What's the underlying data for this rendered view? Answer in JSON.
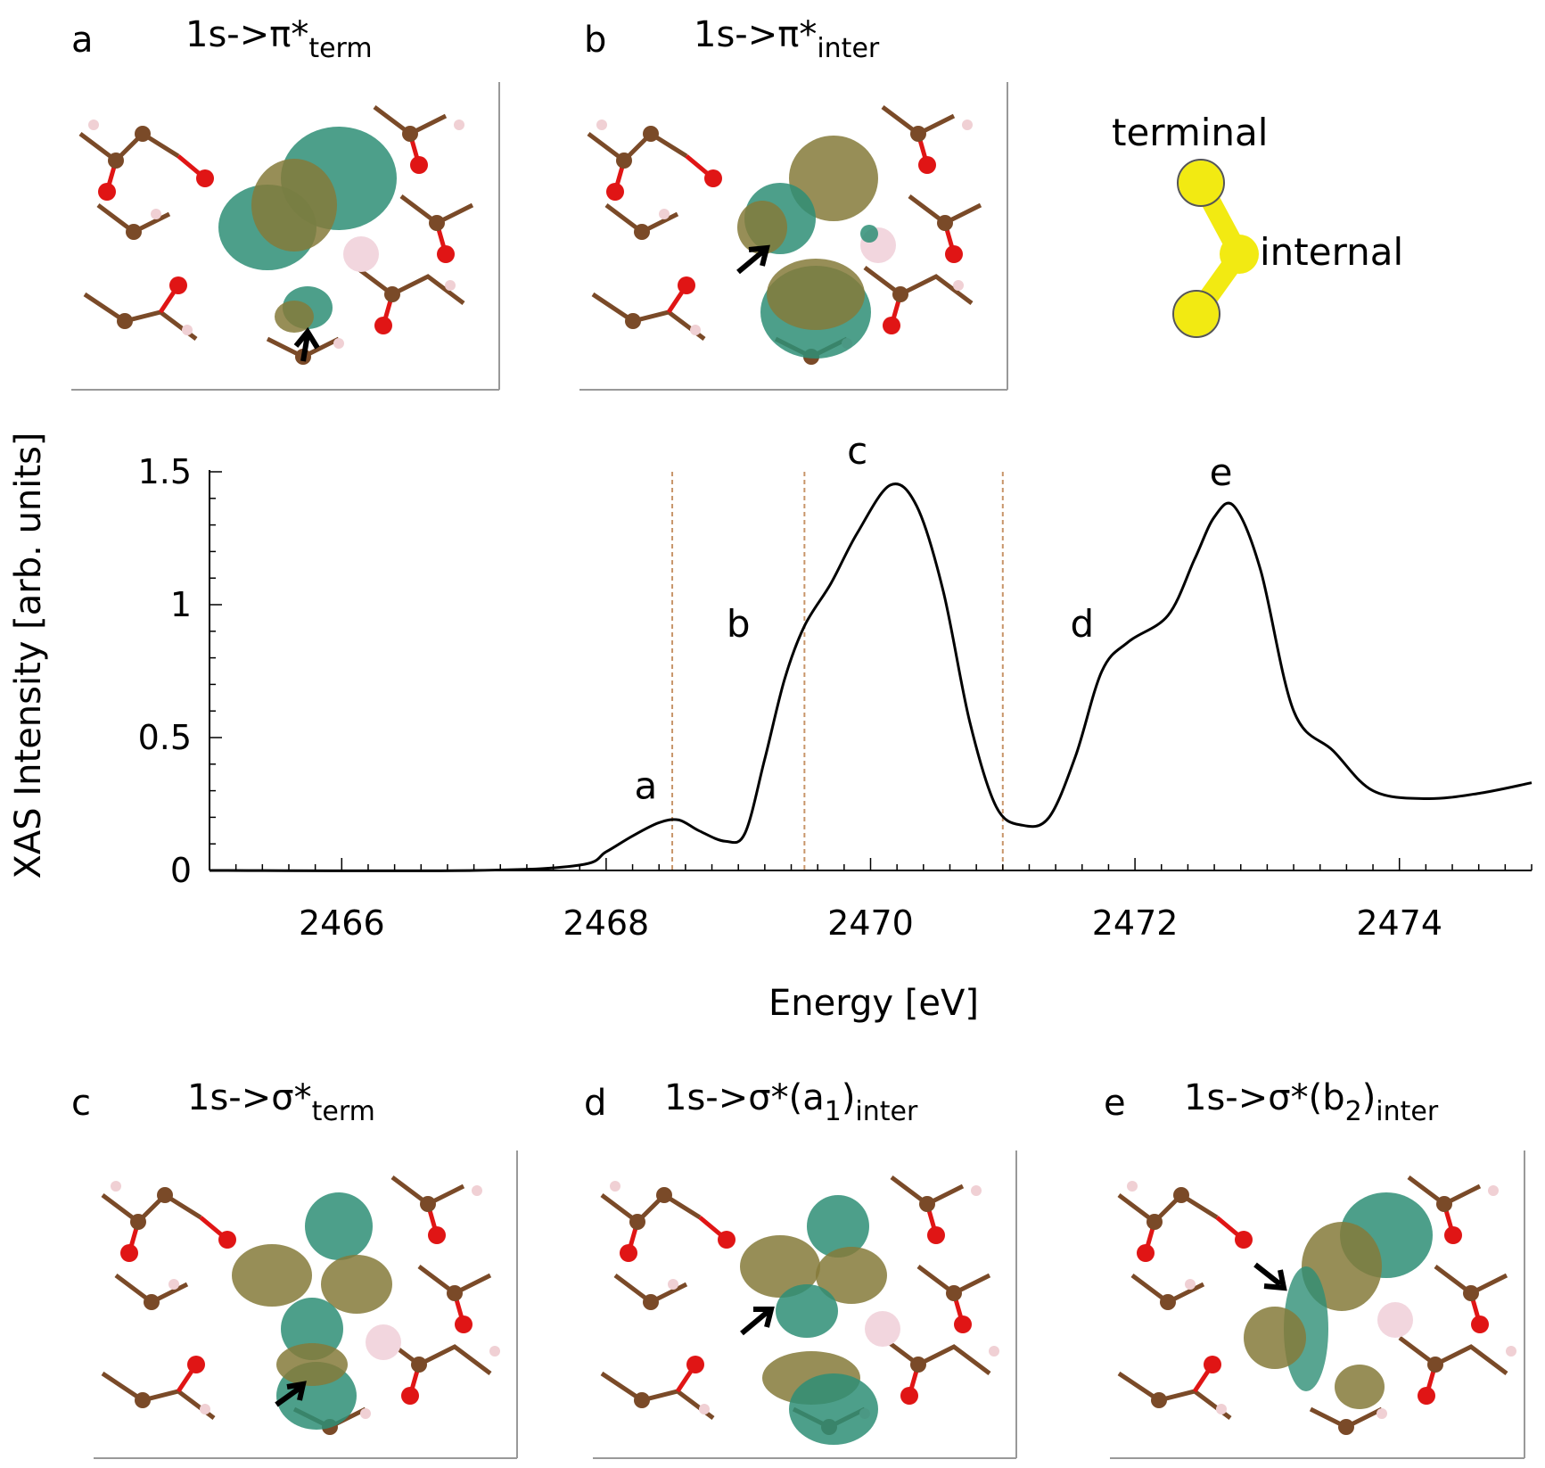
{
  "panels": [
    {
      "letter": "a",
      "base": "1s->π*",
      "sub": "term",
      "tail": ""
    },
    {
      "letter": "b",
      "base": "1s->π*",
      "sub": "inter",
      "tail": ""
    },
    {
      "letter": "c",
      "base": "1s->σ*",
      "sub": "term",
      "tail": ""
    },
    {
      "letter": "d",
      "base": "1s->σ*(a",
      "sub": "1",
      "tail": ")",
      "sub2": "inter"
    },
    {
      "letter": "e",
      "base": "1s->σ*(b",
      "sub": "2",
      "tail": ")",
      "sub2": "inter"
    }
  ],
  "molecule": {
    "terminal_label": "terminal",
    "internal_label": "internal"
  },
  "colors": {
    "curve": "#000000",
    "guide": "#c8956a",
    "oxygen": "#e01515",
    "carbon": "#7a4a28",
    "hydrogen": "#f0d0d4",
    "sulfur": "#f2ea12",
    "lobe_green": "#2e8e76",
    "lobe_brown": "#857a3a",
    "ion": "#f2d6de"
  },
  "chart_data": {
    "type": "line",
    "xlabel": "Energy [eV]",
    "ylabel": "XAS Intensity [arb. units]",
    "xlim": [
      2465,
      2475
    ],
    "ylim": [
      0,
      1.5
    ],
    "xticks": [
      "2466",
      "2468",
      "2470",
      "2472",
      "2474"
    ],
    "yticks": [
      "0",
      "0.5",
      "1",
      "1.5"
    ],
    "x_tick_values": [
      2466,
      2468,
      2470,
      2472,
      2474
    ],
    "y_tick_values": [
      0,
      0.5,
      1,
      1.5
    ],
    "guide_lines_x": [
      2468.5,
      2469.5,
      2471.0
    ],
    "grid": false,
    "series": [
      {
        "x": [
          2465,
          2467,
          2467.8,
          2468.0,
          2468.2,
          2468.4,
          2468.55,
          2468.7,
          2468.9,
          2469.05,
          2469.2,
          2469.35,
          2469.5,
          2469.7,
          2469.9,
          2470.15,
          2470.35,
          2470.55,
          2470.75,
          2470.95,
          2471.15,
          2471.35,
          2471.55,
          2471.75,
          2471.95,
          2472.25,
          2472.45,
          2472.6,
          2472.75,
          2472.95,
          2473.2,
          2473.5,
          2473.8,
          2474.2,
          2474.6,
          2475.0
        ],
        "y": [
          0.0,
          0.0,
          0.02,
          0.07,
          0.13,
          0.18,
          0.19,
          0.15,
          0.11,
          0.14,
          0.42,
          0.72,
          0.92,
          1.08,
          1.27,
          1.45,
          1.37,
          1.05,
          0.56,
          0.24,
          0.17,
          0.2,
          0.43,
          0.75,
          0.86,
          0.96,
          1.17,
          1.33,
          1.37,
          1.13,
          0.6,
          0.45,
          0.3,
          0.27,
          0.29,
          0.33
        ]
      }
    ],
    "annotations": [
      {
        "text": "a",
        "x": 2468.3,
        "y": 0.27
      },
      {
        "text": "b",
        "x": 2469.0,
        "y": 0.88
      },
      {
        "text": "c",
        "x": 2469.9,
        "y": 1.53
      },
      {
        "text": "d",
        "x": 2471.6,
        "y": 0.88
      },
      {
        "text": "e",
        "x": 2472.65,
        "y": 1.45
      }
    ]
  }
}
